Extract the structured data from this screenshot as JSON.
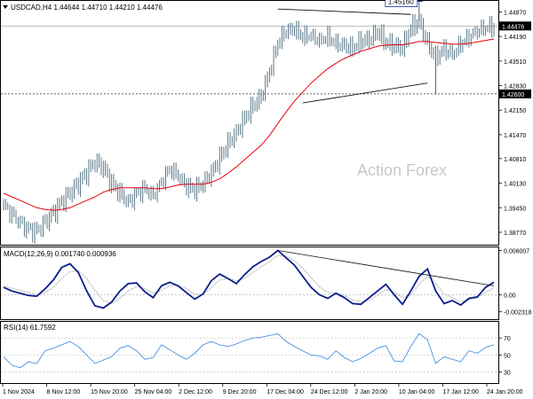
{
  "header": {
    "symbol_line": "USDCAD,H4  1.44644 1.44710 1.44210 1.44476"
  },
  "watermark": "Action Forex",
  "colors": {
    "candle": "#4a6b7d",
    "ma": "#e8000b",
    "macd": "#0b1e8c",
    "signal": "#b0b0b0",
    "rsi": "#4a90e2",
    "trendline": "#111111",
    "current_label_bg": "#000000",
    "support_label_bg": "#000000",
    "high_label_border": "#1a2aa8"
  },
  "chart_data": [
    {
      "type": "candlestick",
      "panel": "price",
      "y_ticks": [
        "1.44870",
        "1.44190",
        "1.43510",
        "1.42830",
        "1.42150",
        "1.41470",
        "1.40810",
        "1.40130",
        "1.39450",
        "1.38770"
      ],
      "ylim": [
        1.3845,
        1.4515
      ],
      "x_ticks": [
        "1 Nov 2024",
        "8 Nov 12:00",
        "15 Nov 20:00",
        "25 Nov 04:00",
        "2 Dec 12:00",
        "9 Dec 20:00",
        "17 Dec 04:00",
        "24 Dec 12:00",
        "2 Jan 20:00",
        "10 Jan 04:00",
        "17 Jan 12:00",
        "24 Jan 20:00"
      ],
      "close_series": [
        1.3955,
        1.393,
        1.3905,
        1.3885,
        1.388,
        1.3905,
        1.393,
        1.396,
        1.3985,
        1.401,
        1.404,
        1.407,
        1.4055,
        1.401,
        1.3985,
        1.396,
        1.3985,
        1.4,
        1.398,
        1.402,
        1.4055,
        1.4035,
        1.4005,
        1.3995,
        1.401,
        1.404,
        1.408,
        1.412,
        1.415,
        1.419,
        1.4225,
        1.425,
        1.432,
        1.44,
        1.4435,
        1.444,
        1.442,
        1.4425,
        1.441,
        1.442,
        1.44,
        1.4395,
        1.4385,
        1.4405,
        1.441,
        1.443,
        1.44,
        1.439,
        1.4385,
        1.444,
        1.446,
        1.44,
        1.436,
        1.4385,
        1.437,
        1.44,
        1.442,
        1.4438,
        1.4445,
        1.4448
      ],
      "last_price_label": "1.44476",
      "support_label": "1.42600",
      "support_level": 1.426,
      "recent_high_label": "1.45160",
      "recent_high": 1.4516,
      "ma_series": [
        1.3985,
        1.3975,
        1.3965,
        1.3955,
        1.3945,
        1.394,
        1.3938,
        1.394,
        1.3945,
        1.3955,
        1.3965,
        1.3975,
        1.3988,
        1.3995,
        1.4,
        1.4,
        1.4,
        1.4,
        1.3998,
        1.3998,
        1.4002,
        1.4008,
        1.401,
        1.401,
        1.401,
        1.4015,
        1.4025,
        1.404,
        1.4058,
        1.4078,
        1.4098,
        1.4118,
        1.4145,
        1.4178,
        1.421,
        1.424,
        1.4265,
        1.429,
        1.431,
        1.433,
        1.4345,
        1.4358,
        1.4368,
        1.4378,
        1.4385,
        1.4392,
        1.4395,
        1.4396,
        1.4396,
        1.44,
        1.4405,
        1.4405,
        1.4402,
        1.44,
        1.4398,
        1.4398,
        1.44,
        1.4404,
        1.4408,
        1.4412
      ]
    },
    {
      "type": "line",
      "panel": "macd",
      "title": "MACD(12,26,9) 0.001740 0.000936",
      "y_ticks": [
        "0.006007",
        "0.00",
        "-0.002318"
      ],
      "ylim": [
        -0.0032,
        0.0063
      ],
      "macd_series": [
        0.001,
        0.0005,
        0.0002,
        -0.0001,
        -0.0002,
        0.0008,
        0.002,
        0.0037,
        0.0042,
        0.003,
        0.0005,
        -0.0015,
        -0.0018,
        -0.001,
        0.0005,
        0.0015,
        0.0016,
        0.0004,
        -0.0004,
        0.0012,
        0.0017,
        0.0012,
        0.0003,
        -0.0006,
        0.0001,
        0.0019,
        0.0028,
        0.0022,
        0.0015,
        0.0027,
        0.0038,
        0.0045,
        0.0051,
        0.006,
        0.005,
        0.004,
        0.0025,
        0.001,
        0.0,
        -0.0005,
        0.0002,
        -0.0004,
        -0.0012,
        -0.0013,
        -0.0004,
        0.0005,
        0.0014,
        0.0,
        -0.0013,
        0.0005,
        0.0025,
        0.0035,
        0.0005,
        -0.0012,
        -0.0008,
        -0.0014,
        -0.0005,
        -0.0003,
        0.001,
        0.0017
      ],
      "signal_series": [
        0.0012,
        0.0009,
        0.0006,
        0.0003,
        0.0,
        0.0003,
        0.001,
        0.0022,
        0.0031,
        0.0033,
        0.0022,
        0.0006,
        -0.0008,
        -0.0012,
        -0.0005,
        0.0005,
        0.0011,
        0.0008,
        0.0002,
        0.0006,
        0.0012,
        0.0013,
        0.0008,
        0.0001,
        0.0,
        0.001,
        0.002,
        0.0022,
        0.0019,
        0.0022,
        0.003,
        0.0038,
        0.0045,
        0.0053,
        0.0052,
        0.0046,
        0.0036,
        0.0023,
        0.0011,
        0.0003,
        0.0002,
        -0.0001,
        -0.0007,
        -0.001,
        -0.0007,
        -0.0001,
        0.0007,
        0.0004,
        -0.0004,
        0.0,
        0.0014,
        0.0025,
        0.0015,
        0.0001,
        -0.0004,
        -0.0009,
        -0.0007,
        -0.0004,
        0.0003,
        0.0009
      ]
    },
    {
      "type": "line",
      "panel": "rsi",
      "title": "RSI(14) 61.7592",
      "y_ticks": [
        "70",
        "50",
        "30"
      ],
      "ylim": [
        18,
        88
      ],
      "rsi_series": [
        48,
        38,
        35,
        42,
        40,
        55,
        58,
        62,
        66,
        60,
        50,
        40,
        44,
        48,
        58,
        61,
        55,
        45,
        47,
        62,
        56,
        50,
        45,
        52,
        62,
        66,
        62,
        60,
        63,
        67,
        70,
        71,
        73,
        75,
        66,
        60,
        55,
        50,
        49,
        45,
        55,
        47,
        42,
        46,
        52,
        58,
        61,
        43,
        42,
        60,
        75,
        68,
        40,
        48,
        45,
        42,
        55,
        52,
        59,
        62
      ]
    }
  ]
}
